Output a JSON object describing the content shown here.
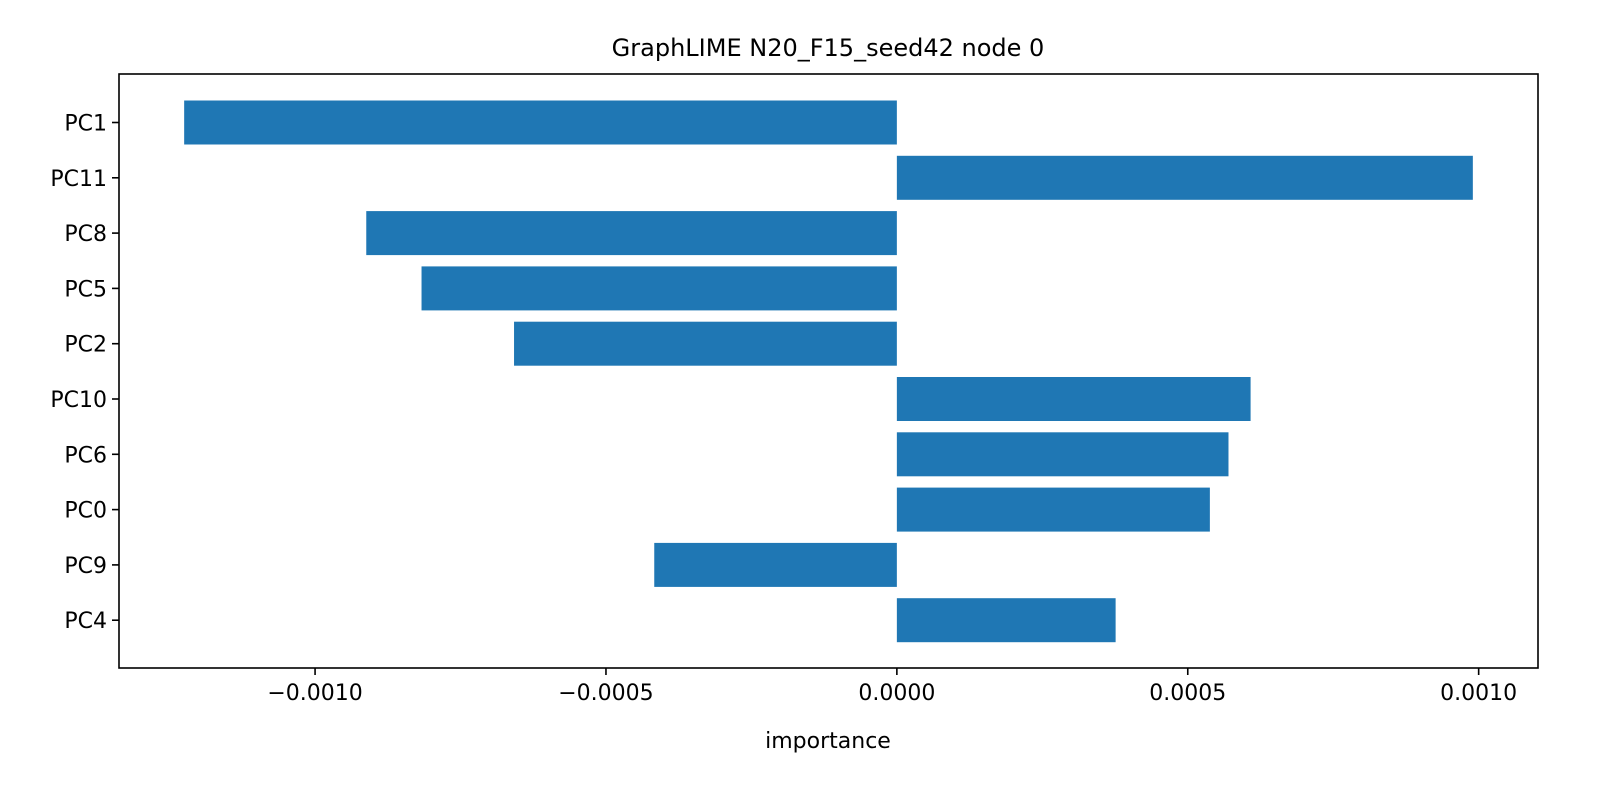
{
  "chart_data": {
    "type": "bar",
    "orientation": "horizontal",
    "title": "GraphLIME N20_F15_seed42 node 0",
    "xlabel": "importance",
    "ylabel": "",
    "categories": [
      "PC1",
      "PC11",
      "PC8",
      "PC5",
      "PC2",
      "PC10",
      "PC6",
      "PC0",
      "PC9",
      "PC4"
    ],
    "values": [
      -0.001225,
      0.00099,
      -0.000912,
      -0.000817,
      -0.000658,
      0.000608,
      0.00057,
      0.000538,
      -0.000417,
      0.000376
    ],
    "xlim": [
      -0.001337,
      0.001102
    ],
    "xticks": [
      -0.001,
      -0.0005,
      0.0,
      0.0005,
      0.001
    ],
    "xtick_labels": [
      "−0.0010",
      "−0.0005",
      "0.0000",
      "0.0005",
      "0.0010"
    ],
    "grid": false,
    "bar_color": "#1f77b4"
  }
}
